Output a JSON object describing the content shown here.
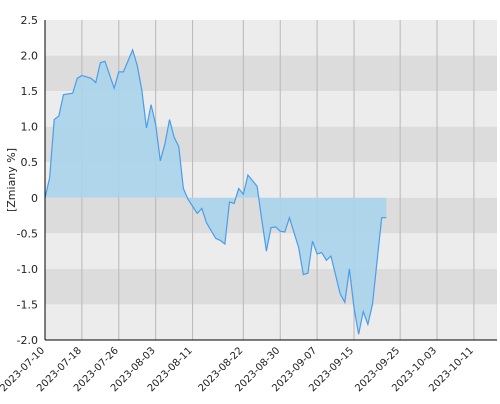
{
  "chart_data": {
    "type": "area",
    "title": "",
    "xlabel": "",
    "ylabel": "[Zmiany %]",
    "ylim": [
      -2.0,
      2.5
    ],
    "yticks": [
      2.5,
      2.0,
      1.5,
      1.0,
      0.5,
      0.0,
      -0.5,
      -1.0,
      -1.5,
      -2.0
    ],
    "ytick_labels": [
      "2.5",
      "2.0",
      "1.5",
      "1.0",
      "0.5",
      "0",
      "-0.5",
      "-1.0",
      "-1.5",
      "-2.0"
    ],
    "xlim": [
      "2023-07-10",
      "2023-10-16"
    ],
    "xticks": [
      "2023-07-10",
      "2023-07-18",
      "2023-07-26",
      "2023-08-03",
      "2023-08-11",
      "2023-08-22",
      "2023-08-30",
      "2023-09-07",
      "2023-09-15",
      "2023-09-25",
      "2023-10-03",
      "2023-10-11"
    ],
    "grid": true,
    "legend": "none",
    "colors": {
      "line": "#4a9de8",
      "fill": "#aad4ec",
      "band_dark": "#dcdcdc",
      "band_light": "#ececec",
      "grid_line": "#b8b8b8"
    },
    "series": [
      {
        "values": [
          {
            "x": "2023-07-10",
            "y": 0.0
          },
          {
            "x": "2023-07-11",
            "y": 0.28
          },
          {
            "x": "2023-07-12",
            "y": 1.1
          },
          {
            "x": "2023-07-13",
            "y": 1.15
          },
          {
            "x": "2023-07-14",
            "y": 1.45
          },
          {
            "x": "2023-07-16",
            "y": 1.47
          },
          {
            "x": "2023-07-17",
            "y": 1.68
          },
          {
            "x": "2023-07-18",
            "y": 1.72
          },
          {
            "x": "2023-07-20",
            "y": 1.68
          },
          {
            "x": "2023-07-21",
            "y": 1.62
          },
          {
            "x": "2023-07-22",
            "y": 1.9
          },
          {
            "x": "2023-07-23",
            "y": 1.92
          },
          {
            "x": "2023-07-25",
            "y": 1.54
          },
          {
            "x": "2023-07-26",
            "y": 1.77
          },
          {
            "x": "2023-07-27",
            "y": 1.77
          },
          {
            "x": "2023-07-29",
            "y": 2.08
          },
          {
            "x": "2023-07-30",
            "y": 1.86
          },
          {
            "x": "2023-07-31",
            "y": 1.51
          },
          {
            "x": "2023-08-01",
            "y": 0.98
          },
          {
            "x": "2023-08-02",
            "y": 1.31
          },
          {
            "x": "2023-08-03",
            "y": 1.03
          },
          {
            "x": "2023-08-04",
            "y": 0.52
          },
          {
            "x": "2023-08-05",
            "y": 0.76
          },
          {
            "x": "2023-08-06",
            "y": 1.1
          },
          {
            "x": "2023-08-07",
            "y": 0.85
          },
          {
            "x": "2023-08-08",
            "y": 0.72
          },
          {
            "x": "2023-08-09",
            "y": 0.13
          },
          {
            "x": "2023-08-10",
            "y": -0.02
          },
          {
            "x": "2023-08-12",
            "y": -0.22
          },
          {
            "x": "2023-08-13",
            "y": -0.15
          },
          {
            "x": "2023-08-14",
            "y": -0.35
          },
          {
            "x": "2023-08-16",
            "y": -0.57
          },
          {
            "x": "2023-08-17",
            "y": -0.6
          },
          {
            "x": "2023-08-18",
            "y": -0.65
          },
          {
            "x": "2023-08-19",
            "y": -0.06
          },
          {
            "x": "2023-08-20",
            "y": -0.08
          },
          {
            "x": "2023-08-21",
            "y": 0.13
          },
          {
            "x": "2023-08-22",
            "y": 0.05
          },
          {
            "x": "2023-08-23",
            "y": 0.32
          },
          {
            "x": "2023-08-25",
            "y": 0.16
          },
          {
            "x": "2023-08-26",
            "y": -0.31
          },
          {
            "x": "2023-08-27",
            "y": -0.75
          },
          {
            "x": "2023-08-28",
            "y": -0.42
          },
          {
            "x": "2023-08-29",
            "y": -0.41
          },
          {
            "x": "2023-08-30",
            "y": -0.47
          },
          {
            "x": "2023-08-31",
            "y": -0.48
          },
          {
            "x": "2023-09-01",
            "y": -0.28
          },
          {
            "x": "2023-09-03",
            "y": -0.7
          },
          {
            "x": "2023-09-04",
            "y": -1.08
          },
          {
            "x": "2023-09-05",
            "y": -1.06
          },
          {
            "x": "2023-09-06",
            "y": -0.61
          },
          {
            "x": "2023-09-07",
            "y": -0.79
          },
          {
            "x": "2023-09-08",
            "y": -0.77
          },
          {
            "x": "2023-09-09",
            "y": -0.88
          },
          {
            "x": "2023-09-10",
            "y": -0.82
          },
          {
            "x": "2023-09-12",
            "y": -1.35
          },
          {
            "x": "2023-09-13",
            "y": -1.47
          },
          {
            "x": "2023-09-14",
            "y": -1.0
          },
          {
            "x": "2023-09-15",
            "y": -1.55
          },
          {
            "x": "2023-09-16",
            "y": -1.92
          },
          {
            "x": "2023-09-17",
            "y": -1.6
          },
          {
            "x": "2023-09-18",
            "y": -1.78
          },
          {
            "x": "2023-09-19",
            "y": -1.5
          },
          {
            "x": "2023-09-21",
            "y": -0.28
          },
          {
            "x": "2023-09-22",
            "y": -0.28
          }
        ]
      }
    ]
  }
}
